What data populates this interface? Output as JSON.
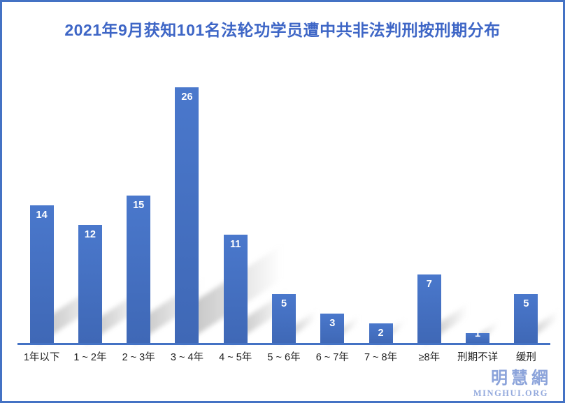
{
  "chart_data": {
    "type": "bar",
    "title": "2021年9月获知101名法轮功学员遭中共非法判刑按刑期分布",
    "categories": [
      "1年以下",
      "1 ~ 2年",
      "2 ~ 3年",
      "3 ~ 4年",
      "4 ~ 5年",
      "5 ~ 6年",
      "6 ~ 7年",
      "7 ~ 8年",
      "≥8年",
      "刑期不详",
      "缓刑"
    ],
    "values": [
      14,
      12,
      15,
      26,
      11,
      5,
      3,
      2,
      7,
      1,
      5
    ],
    "xlabel": "",
    "ylabel": "",
    "ylim": [
      0,
      26
    ],
    "grid": false,
    "legend": "none",
    "data_labels": "inside-end",
    "colors": {
      "bar": "#4472C4",
      "bar_gradient_top": "#4A78CC",
      "bar_gradient_bottom": "#3F68B6",
      "value_label": "#FFFFFF",
      "axis_line": "#4472C4",
      "category_label": "#222222",
      "title": "#3E66C6",
      "frame_border": "#4472C4"
    }
  },
  "branding": {
    "logo_cn": "明慧網",
    "logo_en": "MINGHUI.ORG",
    "color_cn": "#8BA3DA",
    "color_en": "#94AADD"
  }
}
